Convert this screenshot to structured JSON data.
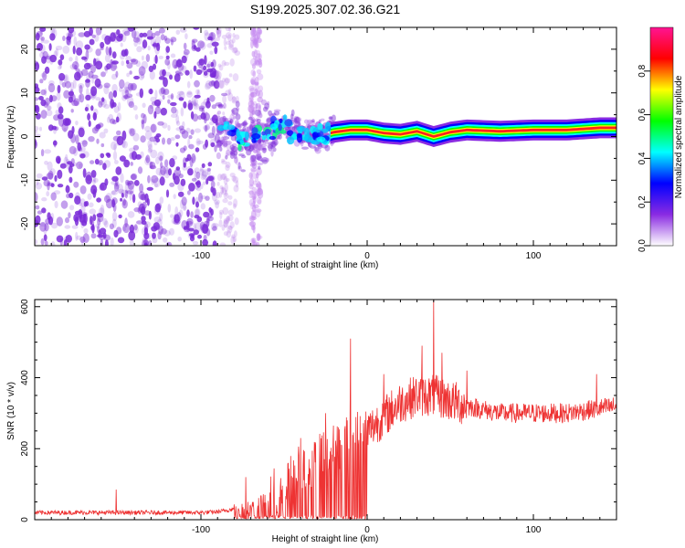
{
  "title": "S199.2025.307.02.36.G21",
  "chart_data": [
    {
      "type": "heatmap",
      "xlabel": "Height of straight line (km)",
      "ylabel": "Frequency (Hz)",
      "xlim": [
        -200,
        150
      ],
      "ylim": [
        -25,
        25
      ],
      "xticks": [
        -100,
        0,
        100
      ],
      "yticks": [
        -20,
        -10,
        0,
        10,
        20
      ],
      "x_tick_labels": [
        "-100",
        "0",
        "100"
      ],
      "y_tick_labels": [
        "-20",
        "-10",
        "0",
        "10",
        "20"
      ],
      "colorbar": {
        "label": "Normalized spectral amplitude",
        "range": [
          0,
          1
        ],
        "ticks": [
          0,
          0.2,
          0.4,
          0.6,
          0.8
        ],
        "tick_labels": [
          "0.0",
          "0.2",
          "0.4",
          "0.6",
          "0.8"
        ],
        "colormap": [
          "#ffffff",
          "#8a2be2",
          "#0000ff",
          "#00ffff",
          "#00ff00",
          "#ffff00",
          "#ff0000",
          "#ff1493"
        ]
      },
      "noise_region": {
        "x": [
          -200,
          -90
        ],
        "color": "#7a2bd8"
      },
      "noise_streak": {
        "x": [
          -70,
          -64
        ]
      },
      "ridge": [
        {
          "x": -88,
          "f": 1.5
        },
        {
          "x": -80,
          "f": 0.5
        },
        {
          "x": -72,
          "f": -1.0
        },
        {
          "x": -60,
          "f": 1.5
        },
        {
          "x": -50,
          "f": 2.5
        },
        {
          "x": -40,
          "f": 1.0
        },
        {
          "x": -30,
          "f": 0.0
        },
        {
          "x": -20,
          "f": 1.0
        },
        {
          "x": -10,
          "f": 1.5
        },
        {
          "x": 0,
          "f": 1.5
        },
        {
          "x": 10,
          "f": 0.8
        },
        {
          "x": 20,
          "f": 0.5
        },
        {
          "x": 30,
          "f": 1.2
        },
        {
          "x": 40,
          "f": 0.0
        },
        {
          "x": 50,
          "f": 1.0
        },
        {
          "x": 60,
          "f": 1.5
        },
        {
          "x": 80,
          "f": 1.2
        },
        {
          "x": 100,
          "f": 1.5
        },
        {
          "x": 120,
          "f": 1.5
        },
        {
          "x": 140,
          "f": 2.0
        },
        {
          "x": 150,
          "f": 2.0
        }
      ]
    },
    {
      "type": "line",
      "xlabel": "Height of straight line (km)",
      "ylabel": "SNR (10 * v/v)",
      "xlim": [
        -200,
        150
      ],
      "ylim": [
        0,
        620
      ],
      "xticks": [
        -100,
        0,
        100
      ],
      "yticks": [
        0,
        200,
        400,
        600
      ],
      "x_tick_labels": [
        "-100",
        "0",
        "100"
      ],
      "y_tick_labels": [
        "0",
        "200",
        "400",
        "600"
      ],
      "color": "#ee3333",
      "trend": [
        {
          "x": -200,
          "y": 20
        },
        {
          "x": -150,
          "y": 20
        },
        {
          "x": -100,
          "y": 20
        },
        {
          "x": -90,
          "y": 22
        },
        {
          "x": -80,
          "y": 30
        },
        {
          "x": -70,
          "y": 35
        },
        {
          "x": -60,
          "y": 60
        },
        {
          "x": -50,
          "y": 100
        },
        {
          "x": -40,
          "y": 140
        },
        {
          "x": -30,
          "y": 170
        },
        {
          "x": -20,
          "y": 200
        },
        {
          "x": -10,
          "y": 230
        },
        {
          "x": 0,
          "y": 250
        },
        {
          "x": 10,
          "y": 290
        },
        {
          "x": 20,
          "y": 330
        },
        {
          "x": 30,
          "y": 350
        },
        {
          "x": 40,
          "y": 350
        },
        {
          "x": 60,
          "y": 320
        },
        {
          "x": 80,
          "y": 300
        },
        {
          "x": 100,
          "y": 300
        },
        {
          "x": 120,
          "y": 300
        },
        {
          "x": 150,
          "y": 320
        }
      ],
      "spikes": [
        {
          "x": -151,
          "y": 85
        },
        {
          "x": -73,
          "y": 120
        },
        {
          "x": -40,
          "y": 230
        },
        {
          "x": -25,
          "y": 300
        },
        {
          "x": -10,
          "y": 510
        },
        {
          "x": 10,
          "y": 410
        },
        {
          "x": 33,
          "y": 490
        },
        {
          "x": 40,
          "y": 620
        },
        {
          "x": 45,
          "y": 470
        },
        {
          "x": 60,
          "y": 420
        },
        {
          "x": 138,
          "y": 410
        }
      ]
    }
  ]
}
